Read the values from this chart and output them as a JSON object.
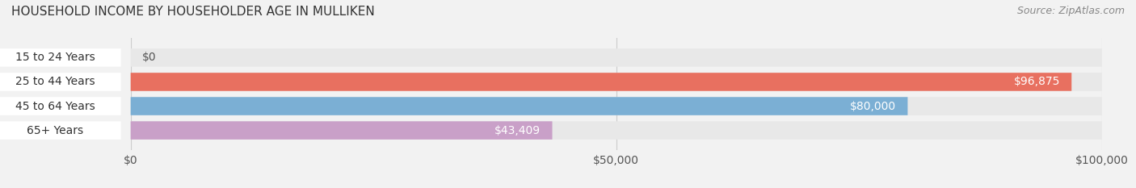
{
  "title": "HOUSEHOLD INCOME BY HOUSEHOLDER AGE IN MULLIKEN",
  "source": "Source: ZipAtlas.com",
  "categories": [
    "15 to 24 Years",
    "25 to 44 Years",
    "45 to 64 Years",
    "65+ Years"
  ],
  "values": [
    0,
    96875,
    80000,
    43409
  ],
  "bar_colors": [
    "#f5c89a",
    "#e87060",
    "#7bafd4",
    "#c9a0c8"
  ],
  "bar_labels": [
    "$0",
    "$96,875",
    "$80,000",
    "$43,409"
  ],
  "xlim": [
    0,
    100000
  ],
  "xticks": [
    0,
    50000,
    100000
  ],
  "xtick_labels": [
    "$0",
    "$50,000",
    "$100,000"
  ],
  "background_color": "#f2f2f2",
  "bar_bg_color": "#e8e8e8",
  "title_fontsize": 11,
  "source_fontsize": 9,
  "label_fontsize": 10,
  "tick_fontsize": 10
}
